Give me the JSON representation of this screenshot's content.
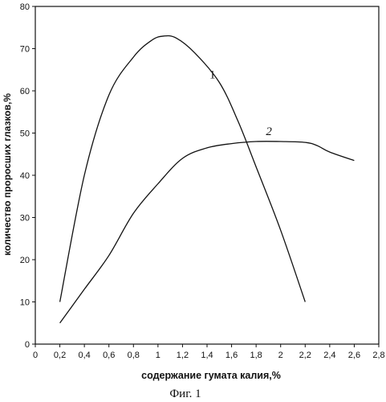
{
  "chart_data": {
    "type": "line",
    "xlabel": "содержание гумата калия,%",
    "ylabel": "количество проросших глазков,%",
    "caption": "Фиг. 1",
    "xlim": [
      0,
      2.8
    ],
    "ylim": [
      0,
      80
    ],
    "xticks": [
      0,
      0.2,
      0.4,
      0.6,
      0.8,
      1,
      1.2,
      1.4,
      1.6,
      1.8,
      2,
      2.2,
      2.4,
      2.6,
      2.8
    ],
    "xtick_labels": [
      "0",
      "0,2",
      "0,4",
      "0,6",
      "0,8",
      "1",
      "1,2",
      "1,4",
      "1,6",
      "1,8",
      "2",
      "2,2",
      "2,4",
      "2,6",
      "2,8"
    ],
    "yticks": [
      0,
      10,
      20,
      30,
      40,
      50,
      60,
      70,
      80
    ],
    "ytick_labels": [
      "0",
      "10",
      "20",
      "30",
      "40",
      "50",
      "60",
      "70",
      "80"
    ],
    "grid": false,
    "series": [
      {
        "name": "1",
        "points": [
          [
            0.2,
            10
          ],
          [
            0.4,
            40
          ],
          [
            0.6,
            59
          ],
          [
            0.8,
            68
          ],
          [
            0.95,
            72
          ],
          [
            1.05,
            73
          ],
          [
            1.15,
            72.5
          ],
          [
            1.3,
            69
          ],
          [
            1.5,
            62
          ],
          [
            1.65,
            53
          ],
          [
            1.8,
            42
          ],
          [
            2.0,
            27
          ],
          [
            2.2,
            10
          ]
        ],
        "label_at": [
          1.42,
          63
        ]
      },
      {
        "name": "2",
        "points": [
          [
            0.2,
            5
          ],
          [
            0.4,
            13
          ],
          [
            0.6,
            21
          ],
          [
            0.8,
            31
          ],
          [
            1.0,
            38
          ],
          [
            1.2,
            44
          ],
          [
            1.4,
            46.5
          ],
          [
            1.6,
            47.5
          ],
          [
            1.8,
            48
          ],
          [
            2.0,
            48
          ],
          [
            2.2,
            47.8
          ],
          [
            2.3,
            47
          ],
          [
            2.4,
            45.5
          ],
          [
            2.6,
            43.5
          ]
        ],
        "label_at": [
          1.88,
          49.5
        ]
      }
    ]
  }
}
